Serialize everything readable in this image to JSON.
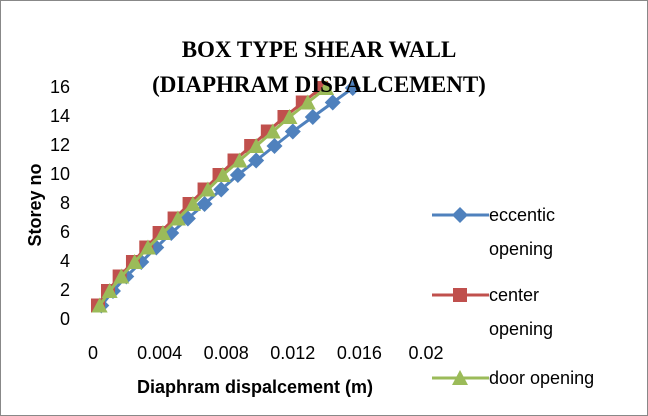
{
  "chart_data": {
    "type": "line",
    "title": "BOX TYPE SHEAR WALL (DIAPHRAM DISPALCEMENT)",
    "x_label": "Diaphram dispalcement (m)",
    "y_label": "Storey no",
    "y": [
      1,
      2,
      3,
      4,
      5,
      6,
      7,
      8,
      9,
      10,
      11,
      12,
      13,
      14,
      15,
      16
    ],
    "series": [
      {
        "name": "eccentic opening",
        "color": "#4f81bd",
        "marker": "diamond",
        "values": [
          0.0005,
          0.0012,
          0.002,
          0.0029,
          0.0038,
          0.0047,
          0.0057,
          0.0067,
          0.0077,
          0.0087,
          0.0098,
          0.0109,
          0.012,
          0.0132,
          0.0144,
          0.0156
        ]
      },
      {
        "name": "center opening",
        "color": "#c0504d",
        "marker": "square",
        "values": [
          0.0003,
          0.0009,
          0.0016,
          0.0024,
          0.0032,
          0.004,
          0.0049,
          0.0058,
          0.0067,
          0.0076,
          0.0085,
          0.0095,
          0.0105,
          0.0115,
          0.0126,
          0.0137
        ]
      },
      {
        "name": "door opening",
        "color": "#9bbb59",
        "marker": "triangle",
        "values": [
          0.0004,
          0.001,
          0.0017,
          0.0025,
          0.0033,
          0.0042,
          0.0051,
          0.006,
          0.0069,
          0.0078,
          0.0088,
          0.0098,
          0.0108,
          0.0118,
          0.0129,
          0.014
        ]
      }
    ],
    "xlim": [
      0,
      0.02
    ],
    "xticks": [
      0,
      0.004,
      0.008,
      0.012,
      0.016,
      0.02
    ],
    "ylim": [
      0,
      16
    ],
    "yticks": [
      0,
      2,
      4,
      6,
      8,
      10,
      12,
      14,
      16
    ],
    "legend": "right",
    "grid": false
  }
}
